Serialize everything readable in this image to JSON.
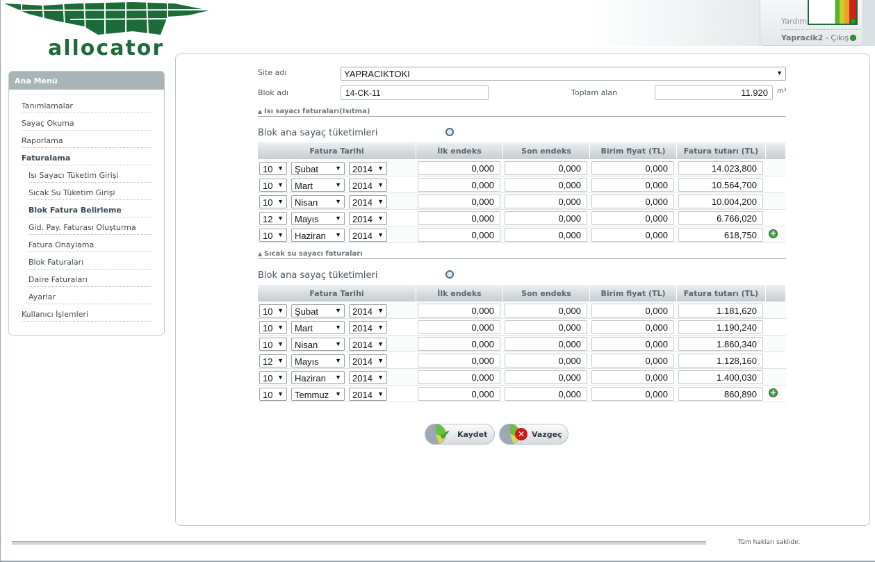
{
  "brand": {
    "logo_text": "allocator",
    "color": "#1e6b3a"
  },
  "header": {
    "help": "Yardım",
    "user": "Yapracik2",
    "logout": "Çıkış",
    "separator": " - "
  },
  "sidebar": {
    "title": "Ana Menü",
    "items": [
      {
        "label": "Tanımlamalar",
        "level": 0
      },
      {
        "label": "Sayaç Okuma",
        "level": 0
      },
      {
        "label": "Raporlama",
        "level": 0
      },
      {
        "label": "Faturalama",
        "level": 0,
        "bold": true
      },
      {
        "label": "Isı Sayacı Tüketim Girişi",
        "level": 1
      },
      {
        "label": "Sıcak Su Tüketim Girişi",
        "level": 1
      },
      {
        "label": "Blok Fatura Belirleme",
        "level": 1,
        "bold": true
      },
      {
        "label": "Gid. Pay. Faturası Oluşturma",
        "level": 1
      },
      {
        "label": "Fatura Onaylama",
        "level": 1
      },
      {
        "label": "Blok Faturaları",
        "level": 1
      },
      {
        "label": "Daire Faturaları",
        "level": 1
      },
      {
        "label": "Ayarlar",
        "level": 1
      },
      {
        "label": "Kullanıcı İşlemleri",
        "level": 0
      }
    ]
  },
  "form": {
    "site_label": "Site adı",
    "site_value": "YAPRACIKTOKI",
    "block_label": "Blok adı",
    "block_value": "14-CK-11",
    "area_label": "Toplam alan",
    "area_value": "11.920",
    "area_unit": "m²"
  },
  "columns": [
    "Fatura Tarihi",
    "İlk endeks",
    "Son endeks",
    "Birim fiyat (TL)",
    "Fatura tutarı (TL)"
  ],
  "sections": [
    {
      "header": "Isı sayacı faturaları(Isıtma)",
      "title": "Blok ana sayaç tüketimleri",
      "rows": [
        [
          "10",
          "Şubat",
          "2014",
          "0,000",
          "0,000",
          "0,000",
          "14.023,800"
        ],
        [
          "10",
          "Mart",
          "2014",
          "0,000",
          "0,000",
          "0,000",
          "10.564,700"
        ],
        [
          "10",
          "Nisan",
          "2014",
          "0,000",
          "0,000",
          "0,000",
          "10.004,200"
        ],
        [
          "12",
          "Mayıs",
          "2014",
          "0,000",
          "0,000",
          "0,000",
          "6.766,020"
        ],
        [
          "10",
          "Haziran",
          "2014",
          "0,000",
          "0,000",
          "0,000",
          "618,750"
        ]
      ]
    },
    {
      "header": "Sıcak su sayacı faturaları",
      "title": "Blok ana sayaç tüketimleri",
      "rows": [
        [
          "10",
          "Şubat",
          "2014",
          "0,000",
          "0,000",
          "0,000",
          "1.181,620"
        ],
        [
          "10",
          "Mart",
          "2014",
          "0,000",
          "0,000",
          "0,000",
          "1.190,240"
        ],
        [
          "10",
          "Nisan",
          "2014",
          "0,000",
          "0,000",
          "0,000",
          "1.860,340"
        ],
        [
          "12",
          "Mayıs",
          "2014",
          "0,000",
          "0,000",
          "0,000",
          "1.128,160"
        ],
        [
          "10",
          "Haziran",
          "2014",
          "0,000",
          "0,000",
          "0,000",
          "1.400,030"
        ],
        [
          "10",
          "Temmuz",
          "2014",
          "0,000",
          "0,000",
          "0,000",
          "860,890"
        ]
      ]
    }
  ],
  "buttons": {
    "save": "Kaydet",
    "cancel": "Vazgeç"
  },
  "footer": {
    "text": "Tüm hakları saklıdır."
  }
}
